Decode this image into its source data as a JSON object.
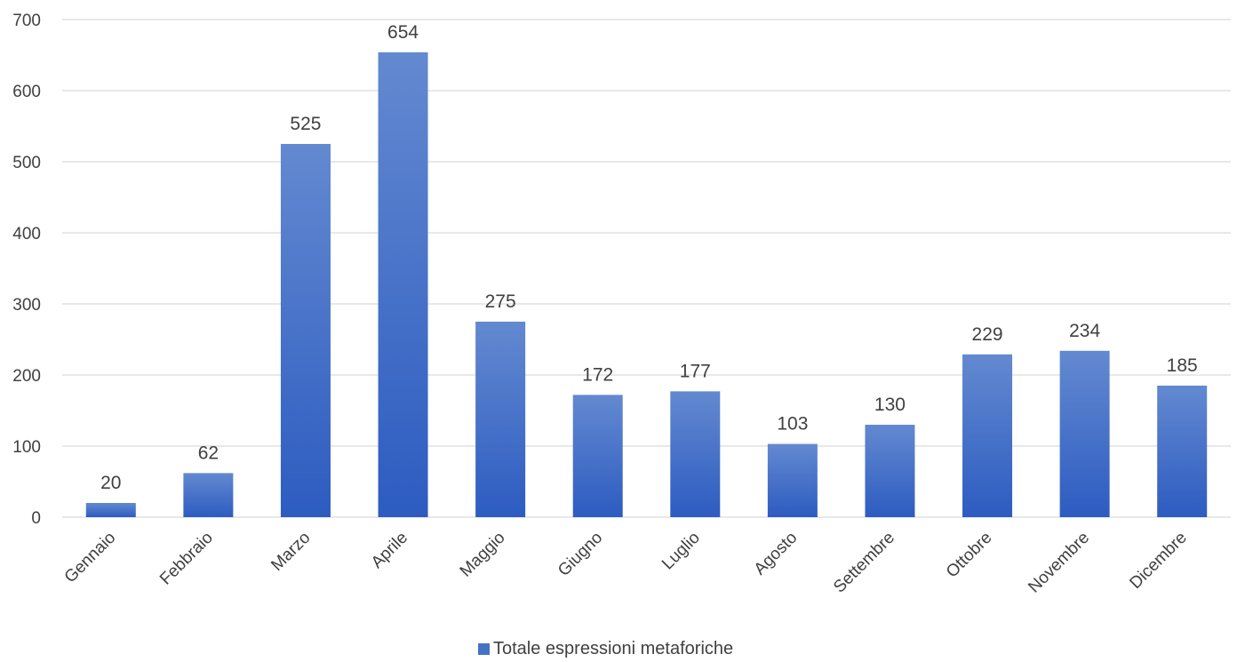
{
  "chart_data": {
    "type": "bar",
    "categories": [
      "Gennaio",
      "Febbraio",
      "Marzo",
      "Aprile",
      "Maggio",
      "Giugno",
      "Luglio",
      "Agosto",
      "Settembre",
      "Ottobre",
      "Novembre",
      "Dicembre"
    ],
    "series": [
      {
        "name": "Totale espressioni metaforiche",
        "values": [
          20,
          62,
          525,
          654,
          275,
          172,
          177,
          103,
          130,
          229,
          234,
          185
        ]
      }
    ],
    "ylim": [
      0,
      700
    ],
    "yticks": [
      "0",
      "100",
      "200",
      "300",
      "400",
      "500",
      "600",
      "700"
    ],
    "grid": true,
    "legend_position": "bottom",
    "colors": {
      "bar_top": "#6389d0",
      "bar_bottom": "#2d5cc1",
      "legend": "#4472c4",
      "grid": "#d9d9d9",
      "text": "#404040"
    }
  }
}
